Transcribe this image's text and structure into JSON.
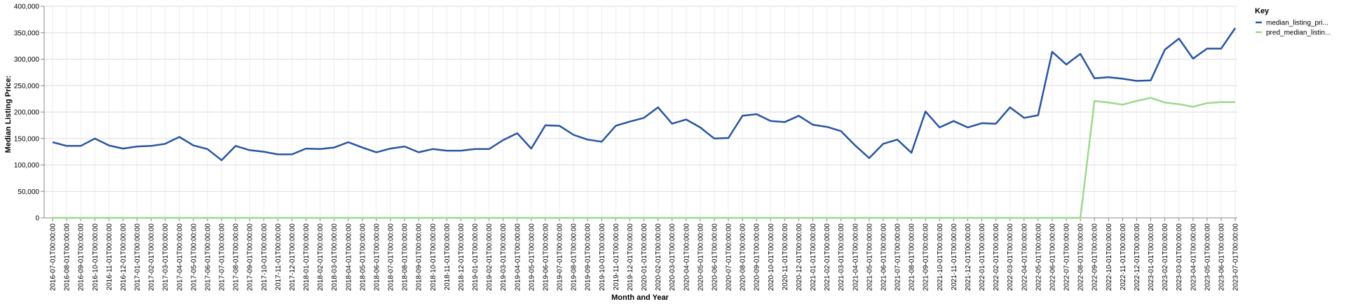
{
  "chart_data": {
    "type": "line",
    "xlabel": "Month and Year",
    "ylabel": "Median Listing Price:",
    "ylim": [
      0,
      400000
    ],
    "y_ticks": [
      "0",
      "50,000",
      "100,000",
      "150,000",
      "200,000",
      "250,000",
      "300,000",
      "350,000",
      "400,000"
    ],
    "grid": true,
    "legend_position": "top-right",
    "legend_title": "Key",
    "categories": [
      "2016-07-01T00:00:00",
      "2016-08-01T00:00:00",
      "2016-09-01T00:00:00",
      "2016-10-01T00:00:00",
      "2016-11-01T00:00:00",
      "2016-12-01T00:00:00",
      "2017-01-01T00:00:00",
      "2017-02-01T00:00:00",
      "2017-03-01T00:00:00",
      "2017-04-01T00:00:00",
      "2017-05-01T00:00:00",
      "2017-06-01T00:00:00",
      "2017-07-01T00:00:00",
      "2017-08-01T00:00:00",
      "2017-09-01T00:00:00",
      "2017-10-01T00:00:00",
      "2017-11-01T00:00:00",
      "2017-12-01T00:00:00",
      "2018-01-01T00:00:00",
      "2018-02-01T00:00:00",
      "2018-03-01T00:00:00",
      "2018-04-01T00:00:00",
      "2018-05-01T00:00:00",
      "2018-06-01T00:00:00",
      "2018-07-01T00:00:00",
      "2018-08-01T00:00:00",
      "2018-09-01T00:00:00",
      "2018-10-01T00:00:00",
      "2018-11-01T00:00:00",
      "2018-12-01T00:00:00",
      "2019-01-01T00:00:00",
      "2019-02-01T00:00:00",
      "2019-03-01T00:00:00",
      "2019-04-01T00:00:00",
      "2019-05-01T00:00:00",
      "2019-06-01T00:00:00",
      "2019-07-01T00:00:00",
      "2019-08-01T00:00:00",
      "2019-09-01T00:00:00",
      "2019-10-01T00:00:00",
      "2019-11-01T00:00:00",
      "2019-12-01T00:00:00",
      "2020-01-01T00:00:00",
      "2020-02-01T00:00:00",
      "2020-03-01T00:00:00",
      "2020-04-01T00:00:00",
      "2020-05-01T00:00:00",
      "2020-06-01T00:00:00",
      "2020-07-01T00:00:00",
      "2020-08-01T00:00:00",
      "2020-09-01T00:00:00",
      "2020-10-01T00:00:00",
      "2020-11-01T00:00:00",
      "2020-12-01T00:00:00",
      "2021-01-01T00:00:00",
      "2021-02-01T00:00:00",
      "2021-03-01T00:00:00",
      "2021-04-01T00:00:00",
      "2021-05-01T00:00:00",
      "2021-06-01T00:00:00",
      "2021-07-01T00:00:00",
      "2021-08-01T00:00:00",
      "2021-09-01T00:00:00",
      "2021-10-01T00:00:00",
      "2021-11-01T00:00:00",
      "2021-12-01T00:00:00",
      "2022-01-01T00:00:00",
      "2022-02-01T00:00:00",
      "2022-03-01T00:00:00",
      "2022-04-01T00:00:00",
      "2022-05-01T00:00:00",
      "2022-06-01T00:00:00",
      "2022-07-01T00:00:00",
      "2022-08-01T00:00:00",
      "2022-09-01T00:00:00",
      "2022-10-01T00:00:00",
      "2022-11-01T00:00:00",
      "2022-12-01T00:00:00",
      "2023-01-01T00:00:00",
      "2023-02-01T00:00:00",
      "2023-03-01T00:00:00",
      "2023-04-01T00:00:00",
      "2023-05-01T00:00:00",
      "2023-06-01T00:00:00",
      "2023-07-01T00:00:00"
    ],
    "series": [
      {
        "name": "median_listing_pri...",
        "color": "#2855a0",
        "values": [
          143000,
          136000,
          136000,
          150000,
          137000,
          131000,
          135000,
          136000,
          140000,
          153000,
          137000,
          130000,
          109000,
          136000,
          128000,
          125000,
          120000,
          120000,
          131000,
          130000,
          133000,
          143000,
          133000,
          124000,
          131000,
          135000,
          124000,
          130000,
          127000,
          127000,
          130000,
          130000,
          147000,
          160000,
          131000,
          175000,
          174000,
          157000,
          148000,
          144000,
          174000,
          182000,
          189000,
          209000,
          178000,
          186000,
          171000,
          150000,
          151000,
          193000,
          196000,
          183000,
          181000,
          193000,
          176000,
          172000,
          164000,
          137000,
          113000,
          140000,
          148000,
          123000,
          201000,
          171000,
          183000,
          171000,
          179000,
          178000,
          209000,
          189000,
          194000,
          314000,
          290000,
          310000,
          264000,
          266000,
          263000,
          259000,
          260000,
          318000,
          339000,
          301000,
          320000,
          320000,
          359000
        ]
      },
      {
        "name": "pred_median_listin...",
        "color": "#9ed88e",
        "values": [
          0,
          0,
          0,
          0,
          0,
          0,
          0,
          0,
          0,
          0,
          0,
          0,
          0,
          0,
          0,
          0,
          0,
          0,
          0,
          0,
          0,
          0,
          0,
          0,
          0,
          0,
          0,
          0,
          0,
          0,
          0,
          0,
          0,
          0,
          0,
          0,
          0,
          0,
          0,
          0,
          0,
          0,
          0,
          0,
          0,
          0,
          0,
          0,
          0,
          0,
          0,
          0,
          0,
          0,
          0,
          0,
          0,
          0,
          0,
          0,
          0,
          0,
          0,
          0,
          0,
          0,
          0,
          0,
          0,
          0,
          0,
          0,
          0,
          0,
          221000,
          218000,
          214000,
          221000,
          227000,
          218000,
          215000,
          210000,
          217000,
          219000,
          219000
        ]
      }
    ]
  }
}
